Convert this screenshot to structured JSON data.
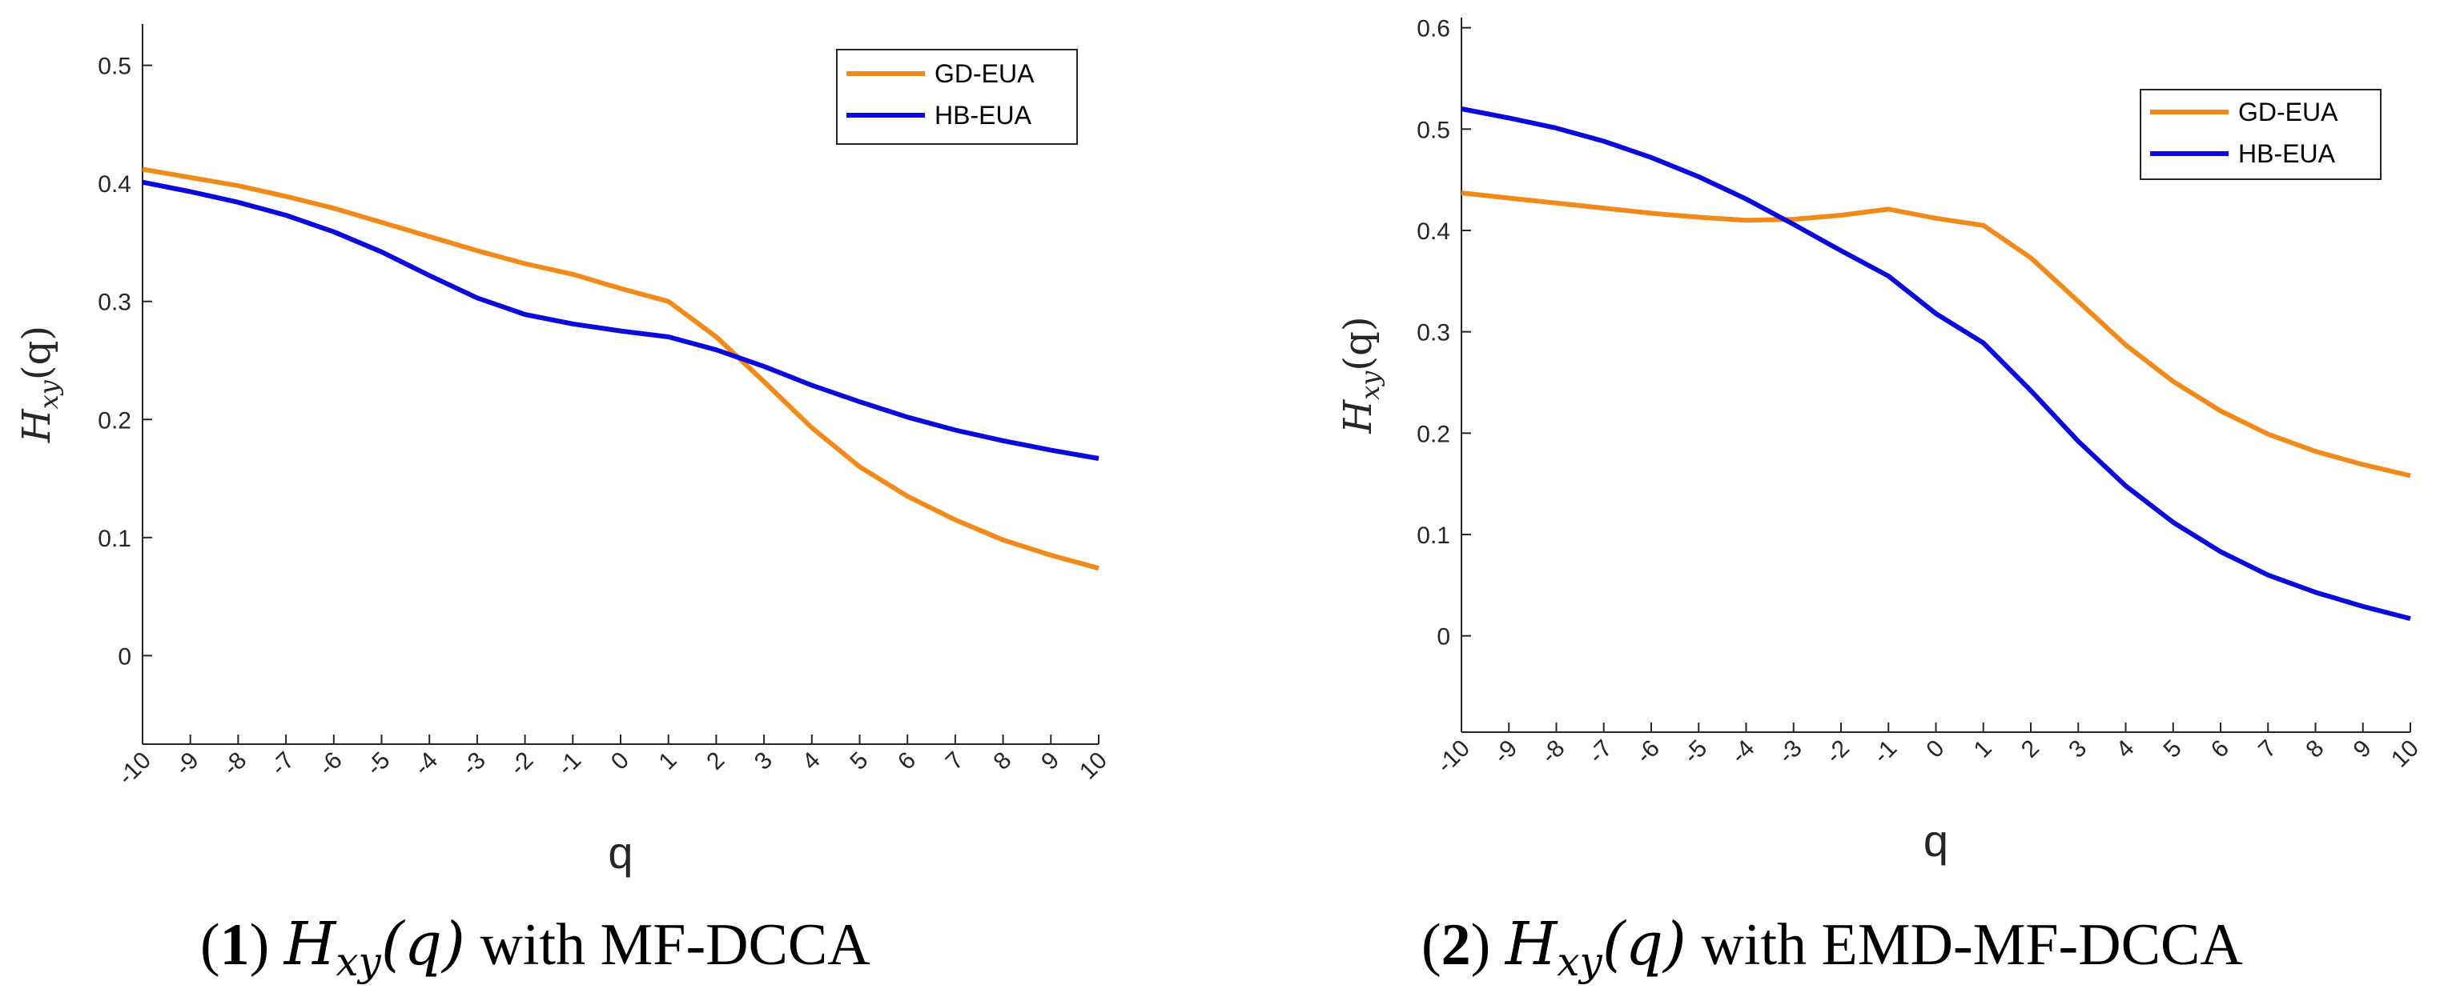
{
  "chart_data": [
    {
      "type": "line",
      "panel_number": "1",
      "caption_math": "H",
      "caption_math_sub": "xy",
      "caption_math_arg": "(q)",
      "caption_text": "with MF-DCCA",
      "xlabel": "q",
      "ylabel": "H",
      "ylabel_sub": "xy",
      "ylabel_arg": "(q)",
      "x": [
        -10,
        -9,
        -8,
        -7,
        -6,
        -5,
        -4,
        -3,
        -2,
        -1,
        0,
        1,
        2,
        3,
        4,
        5,
        6,
        7,
        8,
        9,
        10
      ],
      "xlim": [
        -10,
        10
      ],
      "ylim": [
        -0.075,
        0.535
      ],
      "yticks": [
        0,
        0.1,
        0.2,
        0.3,
        0.4,
        0.5
      ],
      "ytick_labels": [
        "0",
        "0.1",
        "0.2",
        "0.3",
        "0.4",
        "0.5"
      ],
      "legend_position": "top-right",
      "series": [
        {
          "name": "GD-EUA",
          "color": "#F28A1A",
          "values": [
            0.412,
            0.405,
            0.398,
            0.389,
            0.379,
            0.367,
            0.355,
            0.343,
            0.332,
            0.323,
            0.311,
            0.3,
            0.27,
            0.232,
            0.193,
            0.16,
            0.135,
            0.115,
            0.098,
            0.085,
            0.074
          ]
        },
        {
          "name": "HB-EUA",
          "color": "#0A0ADC",
          "values": [
            0.401,
            0.393,
            0.384,
            0.373,
            0.359,
            0.342,
            0.322,
            0.303,
            0.289,
            0.281,
            0.275,
            0.27,
            0.259,
            0.245,
            0.229,
            0.215,
            0.202,
            0.191,
            0.182,
            0.174,
            0.167
          ]
        }
      ]
    },
    {
      "type": "line",
      "panel_number": "2",
      "caption_math": "H",
      "caption_math_sub": "xy",
      "caption_math_arg": "(q)",
      "caption_text": "with EMD-MF-DCCA",
      "xlabel": "q",
      "ylabel": "H",
      "ylabel_sub": "xy",
      "ylabel_arg": "(q)",
      "x": [
        -10,
        -9,
        -8,
        -7,
        -6,
        -5,
        -4,
        -3,
        -2,
        -1,
        0,
        1,
        2,
        3,
        4,
        5,
        6,
        7,
        8,
        9,
        10
      ],
      "xlim": [
        -10,
        10
      ],
      "ylim": [
        -0.095,
        0.61
      ],
      "yticks": [
        0,
        0.1,
        0.2,
        0.3,
        0.4,
        0.5,
        0.6
      ],
      "ytick_labels": [
        "0",
        "0.1",
        "0.2",
        "0.3",
        "0.4",
        "0.5",
        "0.6"
      ],
      "legend_position": "top-right",
      "series": [
        {
          "name": "GD-EUA",
          "color": "#F28A1A",
          "values": [
            0.437,
            0.432,
            0.427,
            0.422,
            0.417,
            0.413,
            0.41,
            0.411,
            0.415,
            0.421,
            0.412,
            0.405,
            0.373,
            0.33,
            0.287,
            0.251,
            0.222,
            0.199,
            0.182,
            0.169,
            0.158
          ]
        },
        {
          "name": "HB-EUA",
          "color": "#0A0ADC",
          "values": [
            0.52,
            0.511,
            0.501,
            0.488,
            0.472,
            0.453,
            0.431,
            0.406,
            0.38,
            0.355,
            0.318,
            0.289,
            0.242,
            0.192,
            0.148,
            0.112,
            0.083,
            0.06,
            0.043,
            0.029,
            0.017
          ]
        }
      ]
    }
  ]
}
